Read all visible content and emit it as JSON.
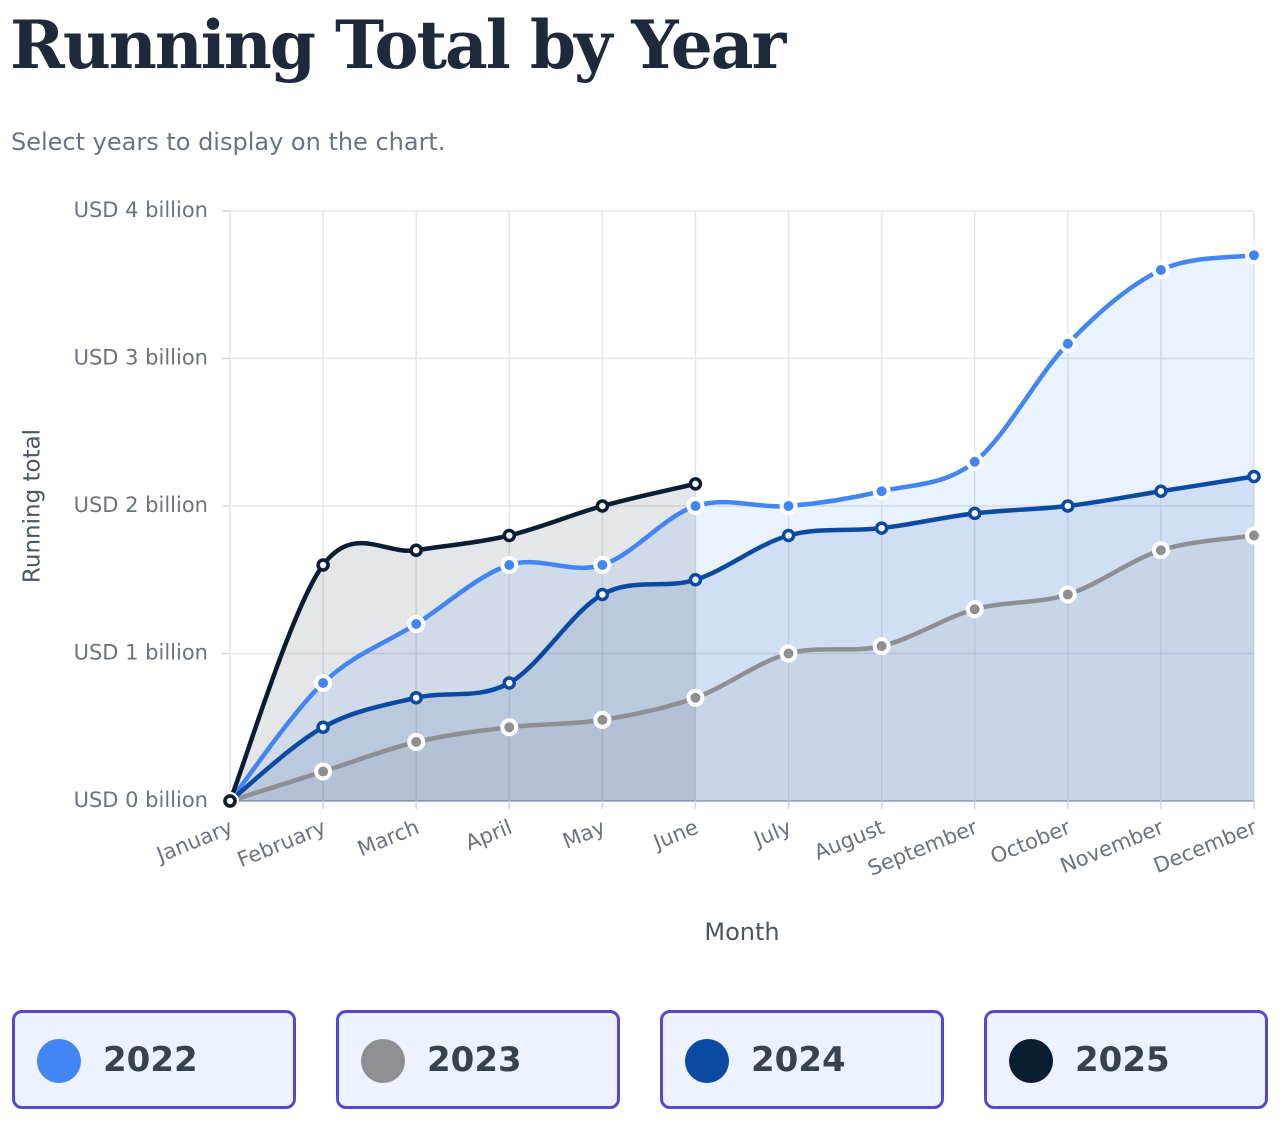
{
  "header": {
    "title": "Running Total by Year",
    "subtitle": "Select years to display on the chart."
  },
  "chart_data": {
    "type": "line",
    "xlabel": "Month",
    "ylabel": "Running total",
    "categories": [
      "January",
      "February",
      "March",
      "April",
      "May",
      "June",
      "July",
      "August",
      "September",
      "October",
      "November",
      "December"
    ],
    "ylim": [
      0,
      4
    ],
    "yticks": [
      {
        "value": 0,
        "label": "USD 0 billion"
      },
      {
        "value": 1,
        "label": "USD 1 billion"
      },
      {
        "value": 2,
        "label": "USD 2 billion"
      },
      {
        "value": 3,
        "label": "USD 3 billion"
      },
      {
        "value": 4,
        "label": "USD 4 billion"
      }
    ],
    "grid": true,
    "area": true,
    "series": [
      {
        "name": "2022",
        "color": "#4285f4",
        "values": [
          0,
          0.8,
          1.2,
          1.6,
          1.6,
          2.0,
          2.0,
          2.1,
          2.3,
          3.1,
          3.6,
          3.7
        ]
      },
      {
        "name": "2023",
        "color": "#8e8f93",
        "values": [
          0,
          0.2,
          0.4,
          0.5,
          0.55,
          0.7,
          1.0,
          1.05,
          1.3,
          1.4,
          1.7,
          1.8
        ]
      },
      {
        "name": "2024",
        "color": "#0b4aa2",
        "values": [
          0,
          0.5,
          0.7,
          0.8,
          1.4,
          1.5,
          1.8,
          1.85,
          1.95,
          2.0,
          2.1,
          2.2
        ]
      },
      {
        "name": "2025",
        "color": "#0b1d33",
        "values": [
          0,
          1.6,
          1.7,
          1.8,
          2.0,
          2.15,
          null,
          null,
          null,
          null,
          null,
          null
        ]
      }
    ]
  }
}
